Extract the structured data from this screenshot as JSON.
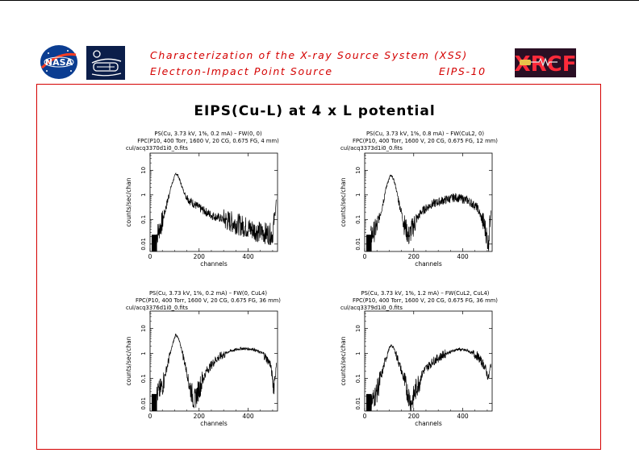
{
  "header": {
    "title": "Characterization of the X-ray Source System (XSS)",
    "subtitle": "Electron-Impact Point Source",
    "doc_id": "EIPS-10",
    "logo_nasa_text": "NASA",
    "logo_xrcf_text": "XRCF"
  },
  "chart_data": {
    "type": "line",
    "title": "EIPS(Cu-L) at 4 x L potential",
    "panels": [
      {
        "header": [
          "PS(Cu, 3.73 kV, 1%, 0.2 mA) – FW(0, 0)",
          "FPC(P10, 400 Torr, 1600 V, 20 CG, 0.675 FG, 4 mm)"
        ],
        "file": "cul/acq3370d1i0_0.fits",
        "xlabel": "channels",
        "ylabel": "counts/sec/chan",
        "xlim": [
          0,
          520
        ],
        "ylim": [
          0.005,
          50
        ],
        "yscale": "log",
        "xticks": [
          0,
          200,
          400
        ],
        "yticks": [
          0.01,
          0.1,
          1,
          10
        ],
        "x": [
          25,
          50,
          70,
          85,
          95,
          105,
          115,
          125,
          140,
          160,
          200,
          250,
          300,
          350,
          400,
          450,
          500,
          515
        ],
        "y": [
          0.02,
          0.08,
          0.5,
          2,
          4,
          7.5,
          6,
          3,
          1.2,
          0.6,
          0.3,
          0.15,
          0.1,
          0.07,
          0.045,
          0.03,
          0.025,
          0.6
        ]
      },
      {
        "header": [
          "PS(Cu, 3.73 kV, 1%, 0.8 mA) – FW(CuL2, 0)",
          "FPC(P10, 400 Torr, 1600 V, 20 CG, 0.675 FG, 12 mm)"
        ],
        "file": "cul/acq3373d1i0_0.fits",
        "xlabel": "channels",
        "ylabel": "counts/sec/chan",
        "xlim": [
          0,
          520
        ],
        "ylim": [
          0.005,
          50
        ],
        "yscale": "log",
        "xticks": [
          0,
          200,
          400
        ],
        "yticks": [
          0.01,
          0.1,
          1,
          10
        ],
        "x": [
          25,
          50,
          70,
          85,
          95,
          105,
          115,
          125,
          140,
          160,
          180,
          200,
          230,
          270,
          320,
          370,
          420,
          460,
          490,
          505,
          515
        ],
        "y": [
          0.02,
          0.05,
          0.3,
          1.5,
          3.5,
          6,
          5,
          2.5,
          0.5,
          0.07,
          0.02,
          0.06,
          0.2,
          0.4,
          0.6,
          0.8,
          0.6,
          0.3,
          0.05,
          0.01,
          0.3
        ]
      },
      {
        "header": [
          "PS(Cu, 3.73 kV, 1%, 0.2 mA) – FW(0, CuL4)",
          "FPC(P10, 400 Torr, 1600 V, 20 CG, 0.675 FG, 36 mm)"
        ],
        "file": "cul/acq3376d1i0_0.fits",
        "xlabel": "channels",
        "ylabel": "counts/sec/chan",
        "xlim": [
          0,
          520
        ],
        "ylim": [
          0.005,
          50
        ],
        "yscale": "log",
        "xticks": [
          0,
          200,
          400
        ],
        "yticks": [
          0.01,
          0.1,
          1,
          10
        ],
        "x": [
          25,
          50,
          65,
          80,
          95,
          105,
          115,
          125,
          140,
          160,
          180,
          200,
          230,
          270,
          320,
          370,
          420,
          460,
          490,
          505,
          515
        ],
        "y": [
          0.02,
          0.05,
          0.2,
          0.8,
          3,
          6,
          4,
          2,
          0.5,
          0.06,
          0.012,
          0.04,
          0.2,
          0.6,
          1.2,
          1.6,
          1.5,
          1.0,
          0.4,
          0.05,
          0.3
        ]
      },
      {
        "header": [
          "PS(Cu, 3.73 kV, 1%, 1.2 mA) – FW(CuL2, CuL4)",
          "FPC(P10, 400 Torr, 1600 V, 20 CG, 0.675 FG, 36 mm)"
        ],
        "file": "cul/acq3379d1i0_0.fits",
        "xlabel": "channels",
        "ylabel": "counts/sec/chan",
        "xlim": [
          0,
          520
        ],
        "ylim": [
          0.005,
          50
        ],
        "yscale": "log",
        "xticks": [
          0,
          200,
          400
        ],
        "yticks": [
          0.01,
          0.1,
          1,
          10
        ],
        "x": [
          25,
          50,
          70,
          85,
          100,
          110,
          120,
          135,
          150,
          170,
          190,
          210,
          240,
          280,
          330,
          380,
          420,
          460,
          490,
          505,
          515
        ],
        "y": [
          0.01,
          0.03,
          0.15,
          0.6,
          1.6,
          2.2,
          1.5,
          0.6,
          0.2,
          0.04,
          0.01,
          0.04,
          0.2,
          0.5,
          1.0,
          1.5,
          1.3,
          0.8,
          0.3,
          0.1,
          0.4
        ]
      }
    ]
  }
}
